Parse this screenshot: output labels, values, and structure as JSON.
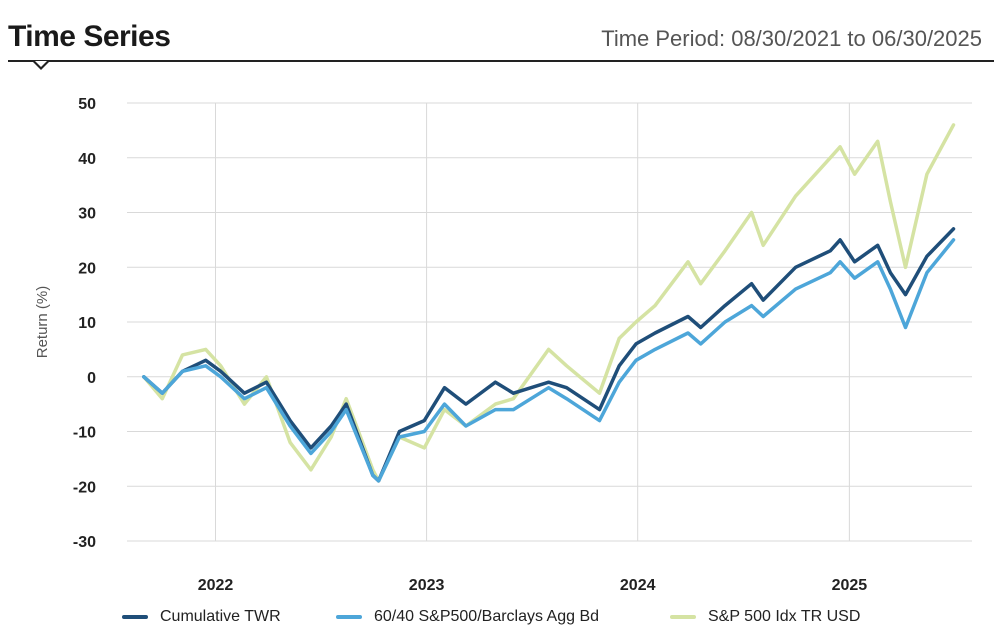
{
  "header": {
    "title": "Time Series",
    "period": "Time Period: 08/30/2021 to 06/30/2025"
  },
  "chart_data": {
    "type": "line",
    "title": "Time Series",
    "ylabel": "Return (%)",
    "xlabel": "",
    "ylim": [
      -30,
      50
    ],
    "yticks": [
      "50",
      "40",
      "30",
      "20",
      "10",
      "0",
      "-10",
      "-20",
      "-30"
    ],
    "xticks": [
      "2022",
      "2023",
      "2024",
      "2025"
    ],
    "grid": true,
    "legend_position": "bottom",
    "series": [
      {
        "name": "Cumulative TWR",
        "color": "#1f4e79",
        "points": [
          [
            "2021-08-30",
            0
          ],
          [
            "2021-10-01",
            -3
          ],
          [
            "2021-11-05",
            1
          ],
          [
            "2021-12-15",
            3
          ],
          [
            "2022-01-10",
            1
          ],
          [
            "2022-02-20",
            -3
          ],
          [
            "2022-03-30",
            -1
          ],
          [
            "2022-05-10",
            -8
          ],
          [
            "2022-06-15",
            -13
          ],
          [
            "2022-07-20",
            -9
          ],
          [
            "2022-08-15",
            -5
          ],
          [
            "2022-09-30",
            -18
          ],
          [
            "2022-10-10",
            -19
          ],
          [
            "2022-11-15",
            -10
          ],
          [
            "2022-12-28",
            -8
          ],
          [
            "2023-02-01",
            -2
          ],
          [
            "2023-03-10",
            -5
          ],
          [
            "2023-04-30",
            -1
          ],
          [
            "2023-05-31",
            -3
          ],
          [
            "2023-07-31",
            -1
          ],
          [
            "2023-08-31",
            -2
          ],
          [
            "2023-10-27",
            -6
          ],
          [
            "2023-11-30",
            2
          ],
          [
            "2023-12-29",
            6
          ],
          [
            "2024-01-31",
            8
          ],
          [
            "2024-03-28",
            11
          ],
          [
            "2024-04-19",
            9
          ],
          [
            "2024-05-31",
            13
          ],
          [
            "2024-07-16",
            17
          ],
          [
            "2024-08-05",
            14
          ],
          [
            "2024-09-30",
            20
          ],
          [
            "2024-11-29",
            23
          ],
          [
            "2024-12-16",
            25
          ],
          [
            "2025-01-10",
            21
          ],
          [
            "2025-02-19",
            24
          ],
          [
            "2025-03-13",
            19
          ],
          [
            "2025-04-08",
            15
          ],
          [
            "2025-05-15",
            22
          ],
          [
            "2025-06-30",
            27
          ]
        ]
      },
      {
        "name": "60/40 S&P500/Barclays Agg Bd",
        "color": "#4da6d9",
        "points": [
          [
            "2021-08-30",
            0
          ],
          [
            "2021-10-01",
            -3
          ],
          [
            "2021-11-05",
            1
          ],
          [
            "2021-12-15",
            2
          ],
          [
            "2022-01-10",
            0
          ],
          [
            "2022-02-20",
            -4
          ],
          [
            "2022-03-30",
            -2
          ],
          [
            "2022-05-10",
            -9
          ],
          [
            "2022-06-15",
            -14
          ],
          [
            "2022-07-20",
            -10
          ],
          [
            "2022-08-15",
            -6
          ],
          [
            "2022-09-30",
            -18
          ],
          [
            "2022-10-10",
            -19
          ],
          [
            "2022-11-15",
            -11
          ],
          [
            "2022-12-28",
            -10
          ],
          [
            "2023-02-01",
            -5
          ],
          [
            "2023-03-10",
            -9
          ],
          [
            "2023-04-30",
            -6
          ],
          [
            "2023-05-31",
            -6
          ],
          [
            "2023-07-31",
            -2
          ],
          [
            "2023-08-31",
            -4
          ],
          [
            "2023-10-27",
            -8
          ],
          [
            "2023-11-30",
            -1
          ],
          [
            "2023-12-29",
            3
          ],
          [
            "2024-01-31",
            5
          ],
          [
            "2024-03-28",
            8
          ],
          [
            "2024-04-19",
            6
          ],
          [
            "2024-05-31",
            10
          ],
          [
            "2024-07-16",
            13
          ],
          [
            "2024-08-05",
            11
          ],
          [
            "2024-09-30",
            16
          ],
          [
            "2024-11-29",
            19
          ],
          [
            "2024-12-16",
            21
          ],
          [
            "2025-01-10",
            18
          ],
          [
            "2025-02-19",
            21
          ],
          [
            "2025-03-13",
            16
          ],
          [
            "2025-04-08",
            9
          ],
          [
            "2025-05-15",
            19
          ],
          [
            "2025-06-30",
            25
          ]
        ]
      },
      {
        "name": "S&P 500 Idx TR USD",
        "color": "#d5e3a3",
        "points": [
          [
            "2021-08-30",
            0
          ],
          [
            "2021-10-01",
            -4
          ],
          [
            "2021-11-05",
            4
          ],
          [
            "2021-12-15",
            5
          ],
          [
            "2022-01-10",
            2
          ],
          [
            "2022-02-20",
            -5
          ],
          [
            "2022-03-30",
            0
          ],
          [
            "2022-05-10",
            -12
          ],
          [
            "2022-06-15",
            -17
          ],
          [
            "2022-07-20",
            -11
          ],
          [
            "2022-08-15",
            -4
          ],
          [
            "2022-09-30",
            -17
          ],
          [
            "2022-10-10",
            -19
          ],
          [
            "2022-11-15",
            -11
          ],
          [
            "2022-12-28",
            -13
          ],
          [
            "2023-02-01",
            -6
          ],
          [
            "2023-03-10",
            -9
          ],
          [
            "2023-04-30",
            -5
          ],
          [
            "2023-05-31",
            -4
          ],
          [
            "2023-07-31",
            5
          ],
          [
            "2023-08-31",
            2
          ],
          [
            "2023-10-27",
            -3
          ],
          [
            "2023-11-30",
            7
          ],
          [
            "2023-12-29",
            10
          ],
          [
            "2024-01-31",
            13
          ],
          [
            "2024-03-28",
            21
          ],
          [
            "2024-04-19",
            17
          ],
          [
            "2024-05-31",
            23
          ],
          [
            "2024-07-16",
            30
          ],
          [
            "2024-08-05",
            24
          ],
          [
            "2024-09-30",
            33
          ],
          [
            "2024-11-29",
            40
          ],
          [
            "2024-12-16",
            42
          ],
          [
            "2025-01-10",
            37
          ],
          [
            "2025-02-19",
            43
          ],
          [
            "2025-03-13",
            32
          ],
          [
            "2025-04-08",
            20
          ],
          [
            "2025-05-15",
            37
          ],
          [
            "2025-06-30",
            46
          ]
        ]
      }
    ]
  }
}
